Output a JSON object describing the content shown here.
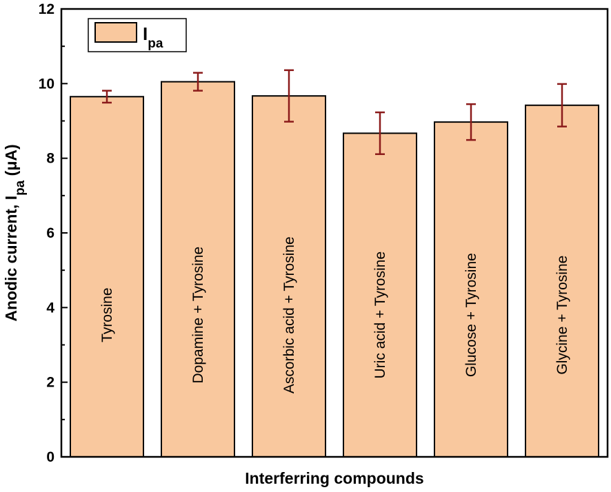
{
  "chart_data": {
    "type": "bar",
    "xlabel": "Interferring compounds",
    "ylabel": "Anodic current, I",
    "ylabel_sub": "pa",
    "ylabel_unit": " (μA)",
    "ylim": [
      0,
      12
    ],
    "yticks": [
      "0",
      "2",
      "4",
      "6",
      "8",
      "10",
      "12"
    ],
    "categories": [
      "Tyrosine",
      "Dopamine + Tyrosine",
      "Ascorbic acid + Tyrosine",
      "Uric acid + Tyrosine",
      "Glucose + Tyrosine",
      "Glycine + Tyrosine"
    ],
    "series": [
      {
        "name": "I",
        "name_sub": "pa",
        "values": [
          9.65,
          10.05,
          9.67,
          8.67,
          8.97,
          9.42
        ],
        "errors": [
          0.16,
          0.24,
          0.69,
          0.56,
          0.48,
          0.57
        ]
      }
    ],
    "legend_position": "top-left",
    "grid": false,
    "bar_color": "#f9c89e",
    "error_color": "#8b1a1a"
  }
}
